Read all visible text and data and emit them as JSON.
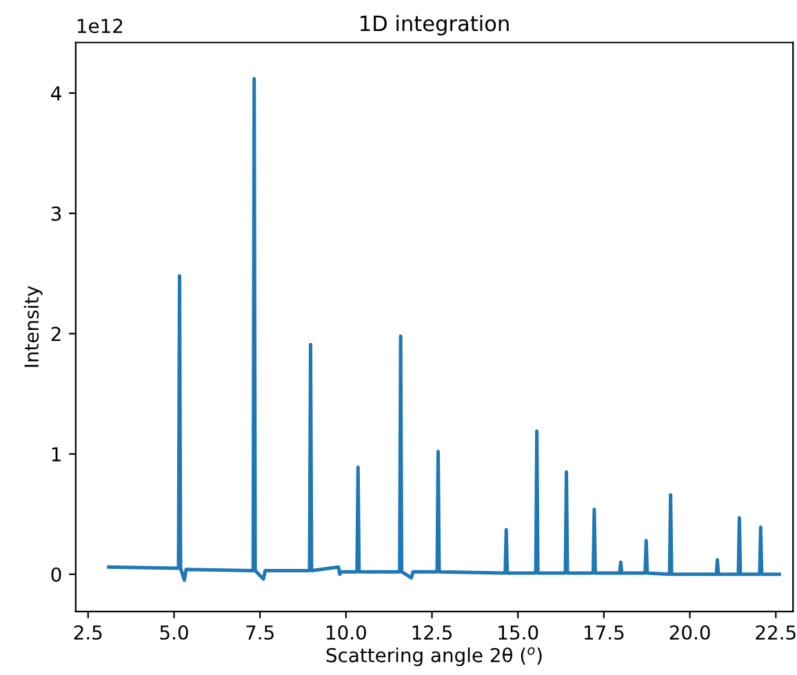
{
  "chart_data": {
    "type": "line",
    "title": "1D integration",
    "xlabel": "Scattering angle 2θ ($^{o}$)",
    "ylabel": "Intensity",
    "annotations": [
      "1e12"
    ],
    "x": [
      3.1,
      5.13,
      5.16,
      5.19,
      5.3,
      5.35,
      7.3,
      7.33,
      7.36,
      7.6,
      7.65,
      8.94,
      8.97,
      9.0,
      9.78,
      9.82,
      9.85,
      10.32,
      10.35,
      10.38,
      11.56,
      11.59,
      11.62,
      11.9,
      11.95,
      12.65,
      12.68,
      12.71,
      14.63,
      14.66,
      14.69,
      15.52,
      15.55,
      15.58,
      16.38,
      16.41,
      16.44,
      17.19,
      17.22,
      17.25,
      17.96,
      17.99,
      18.02,
      18.7,
      18.73,
      18.76,
      19.41,
      19.44,
      19.47,
      20.77,
      20.8,
      20.83,
      21.41,
      21.44,
      21.47,
      22.03,
      22.06,
      22.09,
      22.6
    ],
    "series": [
      {
        "color": "#1f77b4",
        "values": [
          0.06,
          0.05,
          2.48,
          0.05,
          -0.05,
          0.04,
          0.03,
          4.12,
          0.03,
          -0.04,
          0.03,
          0.03,
          1.91,
          0.03,
          0.06,
          0,
          0.02,
          0.02,
          0.89,
          0.02,
          0.02,
          1.98,
          0.02,
          -0.03,
          0.02,
          0.02,
          1.02,
          0.02,
          0.01,
          0.37,
          0.01,
          0.01,
          1.19,
          0.01,
          0.01,
          0.85,
          0.01,
          0.01,
          0.54,
          0.01,
          0.01,
          0.1,
          0.01,
          0.01,
          0.28,
          0.01,
          0,
          0.66,
          0,
          0,
          0.12,
          0,
          0,
          0.47,
          0,
          0,
          0.39,
          0,
          0
        ]
      }
    ],
    "xlim": [
      2.14,
      23.0
    ],
    "ylim": [
      -0.31,
      4.42
    ],
    "xticks": [
      {
        "value": 2.5,
        "label": "2.5"
      },
      {
        "value": 5,
        "label": "5.0"
      },
      {
        "value": 7.5,
        "label": "7.5"
      },
      {
        "value": 10,
        "label": "10.0"
      },
      {
        "value": 12.5,
        "label": "12.5"
      },
      {
        "value": 15,
        "label": "15.0"
      },
      {
        "value": 17.5,
        "label": "17.5"
      },
      {
        "value": 20,
        "label": "20.0"
      },
      {
        "value": 22.5,
        "label": "22.5"
      }
    ],
    "yticks": [
      0,
      1,
      2,
      3,
      4
    ],
    "grid": false,
    "legend": false,
    "marker": "none",
    "line_style": "solid"
  }
}
